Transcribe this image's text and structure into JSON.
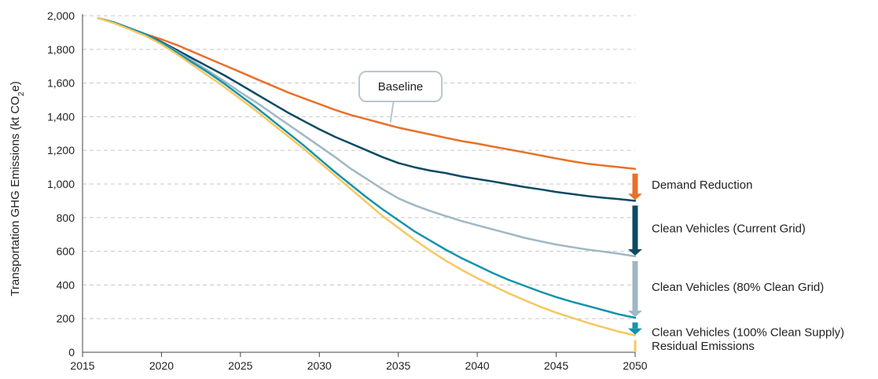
{
  "chart_data": {
    "type": "line",
    "ylabel": "Transportation GHG Emissions (kt CO2e)",
    "ylabel_parts": [
      "Transportation GHG Emissions (kt CO",
      "2",
      "e)"
    ],
    "xlim": [
      2015,
      2050
    ],
    "ylim": [
      0,
      2000
    ],
    "x_ticks": [
      2015,
      2020,
      2025,
      2030,
      2035,
      2040,
      2045,
      2050
    ],
    "x_tick_labels": [
      "2015",
      "2020",
      "2025",
      "2030",
      "2035",
      "2040",
      "2045",
      "2050"
    ],
    "y_ticks": [
      0,
      200,
      400,
      600,
      800,
      1000,
      1200,
      1400,
      1600,
      1800,
      2000
    ],
    "y_tick_labels": [
      "0",
      "200",
      "400",
      "600",
      "800",
      "1,000",
      "1,200",
      "1,400",
      "1,600",
      "1,800",
      "2,000"
    ],
    "grid": "horizontal dashed",
    "series": [
      {
        "key": "baseline",
        "color": "#e8702a",
        "x": [
          2016,
          2017,
          2018,
          2019,
          2020,
          2021,
          2022,
          2023,
          2024,
          2025,
          2026,
          2027,
          2028,
          2029,
          2030,
          2031,
          2032,
          2033,
          2034,
          2035,
          2036,
          2037,
          2038,
          2039,
          2040,
          2041,
          2042,
          2043,
          2044,
          2045,
          2046,
          2047,
          2048,
          2049,
          2050
        ],
        "y": [
          1985,
          1960,
          1925,
          1890,
          1860,
          1825,
          1785,
          1745,
          1705,
          1665,
          1625,
          1585,
          1545,
          1510,
          1475,
          1440,
          1410,
          1385,
          1360,
          1335,
          1315,
          1295,
          1275,
          1255,
          1240,
          1222,
          1205,
          1188,
          1170,
          1152,
          1135,
          1120,
          1110,
          1100,
          1090
        ]
      },
      {
        "key": "after-demand-reduction",
        "color": "#0c4a63",
        "x": [
          2016,
          2017,
          2018,
          2019,
          2020,
          2021,
          2022,
          2023,
          2024,
          2025,
          2026,
          2027,
          2028,
          2029,
          2030,
          2031,
          2032,
          2033,
          2034,
          2035,
          2036,
          2037,
          2038,
          2039,
          2040,
          2041,
          2042,
          2043,
          2044,
          2045,
          2046,
          2047,
          2048,
          2049,
          2050
        ],
        "y": [
          1985,
          1960,
          1925,
          1890,
          1845,
          1795,
          1745,
          1695,
          1645,
          1590,
          1535,
          1480,
          1425,
          1375,
          1325,
          1280,
          1240,
          1200,
          1160,
          1125,
          1100,
          1080,
          1065,
          1045,
          1030,
          1015,
          998,
          982,
          968,
          953,
          940,
          928,
          918,
          910,
          900
        ]
      },
      {
        "key": "after-clean-vehicles-current-grid",
        "color": "#9fb7c4",
        "x": [
          2016,
          2017,
          2018,
          2019,
          2020,
          2021,
          2022,
          2023,
          2024,
          2025,
          2026,
          2027,
          2028,
          2029,
          2030,
          2031,
          2032,
          2033,
          2034,
          2035,
          2036,
          2037,
          2038,
          2039,
          2040,
          2041,
          2042,
          2043,
          2044,
          2045,
          2046,
          2047,
          2048,
          2049,
          2050
        ],
        "y": [
          1985,
          1960,
          1925,
          1890,
          1840,
          1785,
          1730,
          1670,
          1610,
          1545,
          1485,
          1420,
          1355,
          1290,
          1225,
          1160,
          1090,
          1030,
          970,
          915,
          875,
          840,
          810,
          780,
          755,
          730,
          705,
          680,
          660,
          640,
          625,
          610,
          598,
          585,
          570
        ]
      },
      {
        "key": "after-clean-vehicles-80-clean-grid",
        "color": "#1592ad",
        "x": [
          2016,
          2017,
          2018,
          2019,
          2020,
          2021,
          2022,
          2023,
          2024,
          2025,
          2026,
          2027,
          2028,
          2029,
          2030,
          2031,
          2032,
          2033,
          2034,
          2035,
          2036,
          2037,
          2038,
          2039,
          2040,
          2041,
          2042,
          2043,
          2044,
          2045,
          2046,
          2047,
          2048,
          2049,
          2050
        ],
        "y": [
          1985,
          1960,
          1925,
          1890,
          1840,
          1780,
          1720,
          1660,
          1595,
          1525,
          1455,
          1380,
          1305,
          1230,
          1150,
          1070,
          995,
          920,
          850,
          785,
          720,
          665,
          610,
          560,
          515,
          470,
          430,
          395,
          360,
          328,
          300,
          275,
          250,
          225,
          205
        ]
      },
      {
        "key": "after-clean-vehicles-100-clean-supply",
        "color": "#f6c85f",
        "x": [
          2016,
          2017,
          2018,
          2019,
          2020,
          2021,
          2022,
          2023,
          2024,
          2025,
          2026,
          2027,
          2028,
          2029,
          2030,
          2031,
          2032,
          2033,
          2034,
          2035,
          2036,
          2037,
          2038,
          2039,
          2040,
          2041,
          2042,
          2043,
          2044,
          2045,
          2046,
          2047,
          2048,
          2049,
          2050
        ],
        "y": [
          1985,
          1955,
          1918,
          1880,
          1830,
          1770,
          1705,
          1640,
          1575,
          1505,
          1435,
          1360,
          1285,
          1210,
          1130,
          1050,
          970,
          890,
          810,
          740,
          670,
          605,
          545,
          490,
          440,
          395,
          350,
          310,
          270,
          235,
          205,
          175,
          148,
          122,
          100
        ]
      }
    ],
    "wedges": [
      {
        "label": "Demand Reduction",
        "color": "#e8702a",
        "from": 1090,
        "to": 900
      },
      {
        "label": "Clean Vehicles (Current Grid)",
        "color": "#0c4a63",
        "from": 900,
        "to": 570
      },
      {
        "label": "Clean Vehicles (80% Clean Grid)",
        "color": "#9fb7c4",
        "from": 570,
        "to": 205
      },
      {
        "label": "Clean Vehicles (100% Clean Supply)",
        "color": "#1592ad",
        "from": 205,
        "to": 100
      },
      {
        "label": "Residual Emissions",
        "color": "#f6c85f",
        "from": 100,
        "to": 0
      }
    ],
    "annotations": [
      {
        "text": "Baseline",
        "series": "baseline",
        "points_to_x": 2034.5
      }
    ]
  }
}
